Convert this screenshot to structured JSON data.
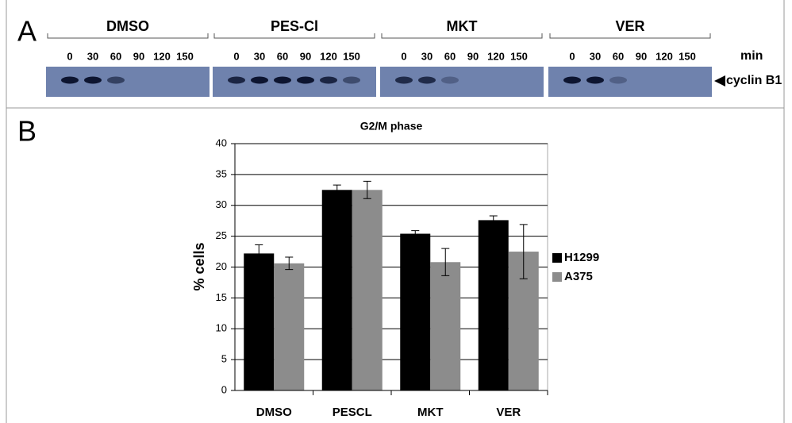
{
  "panel_a": {
    "label": "A",
    "unit": "min",
    "marker": "cyclin B1",
    "groups": [
      {
        "name": "DMSO",
        "times": [
          0,
          30,
          60,
          90,
          120,
          150
        ]
      },
      {
        "name": "PES-Cl",
        "times": [
          0,
          30,
          60,
          90,
          120,
          150
        ]
      },
      {
        "name": "MKT",
        "times": [
          0,
          30,
          60,
          90,
          120,
          150
        ]
      },
      {
        "name": "VER",
        "times": [
          0,
          30,
          60,
          90,
          120,
          150
        ]
      }
    ]
  },
  "panel_b": {
    "label": "B"
  },
  "chart_data": {
    "type": "bar",
    "title": "G2/M phase",
    "y_label": "% cells",
    "categories": [
      "DMSO",
      "PESCL",
      "MKT",
      "VER"
    ],
    "series": [
      {
        "name": "H1299",
        "color": "#000000",
        "values": [
          22.2,
          32.5,
          25.4,
          27.6
        ],
        "errors": [
          1.4,
          0.8,
          0.5,
          0.7
        ]
      },
      {
        "name": "A375",
        "color": "#8c8c8c",
        "values": [
          20.6,
          32.5,
          20.8,
          22.5
        ],
        "errors": [
          1.0,
          1.4,
          2.2,
          4.4
        ]
      }
    ],
    "ylim": [
      0,
      40
    ],
    "yticks": [
      0,
      5,
      10,
      15,
      20,
      25,
      30,
      35,
      40
    ],
    "grid": true,
    "legend": "right"
  }
}
